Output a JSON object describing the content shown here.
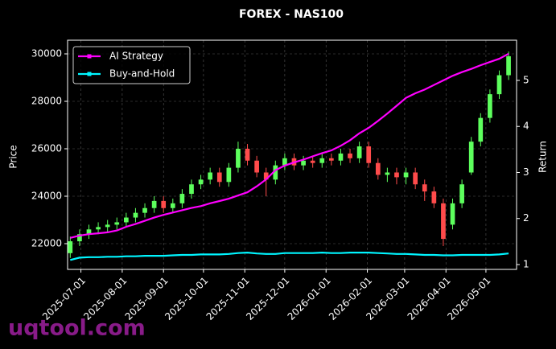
{
  "chart_data": {
    "type": "candlestick",
    "title": "FOREX - NAS100",
    "ylabel": "Price",
    "y2label": "Return",
    "watermark": "uqtool.com",
    "x": [
      "2025-06-23",
      "2025-06-30",
      "2025-07-07",
      "2025-07-14",
      "2025-07-21",
      "2025-07-28",
      "2025-08-04",
      "2025-08-11",
      "2025-08-18",
      "2025-08-25",
      "2025-09-01",
      "2025-09-08",
      "2025-09-15",
      "2025-09-22",
      "2025-09-29",
      "2025-10-06",
      "2025-10-13",
      "2025-10-20",
      "2025-10-27",
      "2025-11-03",
      "2025-11-10",
      "2025-11-17",
      "2025-11-24",
      "2025-12-01",
      "2025-12-08",
      "2025-12-15",
      "2025-12-22",
      "2025-12-29",
      "2026-01-05",
      "2026-01-12",
      "2026-01-19",
      "2026-01-26",
      "2026-02-02",
      "2026-02-09",
      "2026-02-16",
      "2026-02-23",
      "2026-03-02",
      "2026-03-09",
      "2026-03-16",
      "2026-03-23",
      "2026-03-30",
      "2026-04-06",
      "2026-04-13",
      "2026-04-20",
      "2026-04-27",
      "2026-05-04",
      "2026-05-11",
      "2026-05-18"
    ],
    "open": [
      21600,
      22100,
      22400,
      22600,
      22700,
      22800,
      22900,
      23100,
      23300,
      23500,
      23800,
      23500,
      23700,
      24100,
      24500,
      24700,
      25000,
      24600,
      25200,
      26000,
      25500,
      25000,
      24700,
      25300,
      25600,
      25300,
      25500,
      25400,
      25600,
      25500,
      25800,
      25600,
      26100,
      25400,
      24900,
      25000,
      24800,
      25000,
      24500,
      24200,
      23700,
      22800,
      23700,
      25000,
      26300,
      27300,
      28300,
      29100
    ],
    "high": [
      22300,
      22600,
      22800,
      22900,
      23000,
      23100,
      23300,
      23500,
      23700,
      24000,
      24000,
      23900,
      24300,
      24700,
      24900,
      25200,
      25200,
      25400,
      26300,
      26200,
      25700,
      25200,
      25500,
      25800,
      25800,
      25700,
      25700,
      25800,
      25800,
      26000,
      26000,
      26300,
      26300,
      25600,
      25200,
      25200,
      25200,
      25200,
      24700,
      24400,
      23900,
      23900,
      24700,
      26500,
      27500,
      28500,
      29300,
      30100
    ],
    "low": [
      21400,
      21900,
      22200,
      22400,
      22500,
      22600,
      22700,
      22900,
      23100,
      23300,
      23300,
      23300,
      23500,
      23900,
      24300,
      24500,
      24400,
      24400,
      25000,
      25300,
      24800,
      24000,
      24500,
      25100,
      25100,
      25100,
      25200,
      25200,
      25300,
      25300,
      25400,
      25400,
      25200,
      24700,
      24600,
      24500,
      24500,
      24300,
      23800,
      23500,
      21900,
      22600,
      23500,
      24900,
      26100,
      27100,
      28100,
      28900
    ],
    "close": [
      22100,
      22400,
      22600,
      22700,
      22800,
      22900,
      23100,
      23300,
      23500,
      23800,
      23500,
      23700,
      24100,
      24500,
      24700,
      25000,
      24600,
      25200,
      26000,
      25500,
      25000,
      24700,
      25300,
      25600,
      25300,
      25500,
      25400,
      25600,
      25500,
      25800,
      25600,
      26100,
      25400,
      24900,
      25000,
      24800,
      25000,
      24500,
      24200,
      23700,
      22200,
      23700,
      24500,
      26300,
      27300,
      28300,
      29100,
      29900
    ],
    "up_color": "#5dff5d",
    "down_color": "#ff4b4b",
    "series": [
      {
        "name": "AI Strategy",
        "color": "#ff00ff",
        "axis": "y2",
        "values": [
          1.58,
          1.63,
          1.66,
          1.68,
          1.7,
          1.74,
          1.82,
          1.88,
          1.95,
          2.02,
          2.08,
          2.13,
          2.18,
          2.23,
          2.27,
          2.33,
          2.38,
          2.43,
          2.5,
          2.57,
          2.7,
          2.85,
          3.05,
          3.15,
          3.22,
          3.28,
          3.35,
          3.42,
          3.48,
          3.58,
          3.7,
          3.85,
          3.97,
          4.12,
          4.28,
          4.45,
          4.62,
          4.72,
          4.8,
          4.9,
          5.0,
          5.1,
          5.18,
          5.25,
          5.33,
          5.4,
          5.47,
          5.58
        ]
      },
      {
        "name": "Buy-and-Hold",
        "color": "#00f5ff",
        "axis": "y2",
        "values": [
          1.1,
          1.15,
          1.16,
          1.16,
          1.17,
          1.17,
          1.18,
          1.18,
          1.19,
          1.19,
          1.19,
          1.2,
          1.21,
          1.21,
          1.22,
          1.22,
          1.22,
          1.23,
          1.25,
          1.26,
          1.24,
          1.23,
          1.23,
          1.25,
          1.25,
          1.25,
          1.25,
          1.26,
          1.25,
          1.25,
          1.26,
          1.26,
          1.26,
          1.25,
          1.24,
          1.23,
          1.23,
          1.22,
          1.21,
          1.21,
          1.2,
          1.2,
          1.21,
          1.21,
          1.21,
          1.21,
          1.22,
          1.24
        ]
      }
    ],
    "xlim": [
      "2025-06-21",
      "2026-05-24"
    ],
    "xticks": [
      "2025-07-01",
      "2025-08-01",
      "2025-09-01",
      "2025-10-01",
      "2025-11-01",
      "2025-12-01",
      "2026-01-01",
      "2026-02-01",
      "2026-03-01",
      "2026-04-01",
      "2026-05-01"
    ],
    "ylim": [
      20915,
      30576
    ],
    "yticks": [
      22000,
      24000,
      26000,
      28000,
      30000
    ],
    "y2lim": [
      0.895,
      5.873
    ],
    "y2ticks": [
      1,
      2,
      3,
      4,
      5
    ],
    "grid": true,
    "legend": "upper left"
  }
}
